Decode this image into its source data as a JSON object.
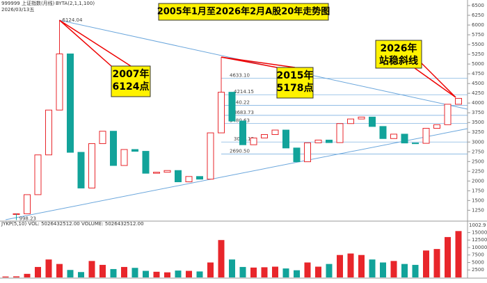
{
  "chart_data": {
    "type": "candlestick",
    "title": "2005年1月至2026年2月A股20年走势图",
    "header": [
      "999999 上证指数(月线)",
      "BYTA(2,1,1,100)",
      "2026/03/13五"
    ],
    "up_color": "#e8262b",
    "down_color": "#12a39a",
    "values": [
      1150,
      1160,
      1650,
      2670,
      3820,
      5260,
      2736,
      1820,
      2959,
      3277,
      2398,
      2808,
      2762,
      2199,
      2225,
      2269,
      1979,
      2116,
      2048,
      3235,
      4277,
      3539,
      2930,
      3104,
      3192,
      3307,
      2847,
      2494,
      2979,
      3050,
      2985,
      3473,
      3591,
      3640,
      3399,
      3089,
      3202,
      2975,
      2967,
      3352,
      3444,
      3969,
      4120
    ],
    "ylim": [
      900,
      6500
    ],
    "yticks": [
      1250,
      1500,
      1750,
      2000,
      2250,
      2500,
      2750,
      3000,
      3250,
      3500,
      3750,
      4000,
      4250,
      4500,
      4750,
      5000,
      5250,
      5500,
      5750,
      6000,
      6250,
      6500
    ],
    "grid": false,
    "peaks": [
      {
        "value": 6124.04,
        "label": "6124.04"
      },
      {
        "value": 5178
      }
    ],
    "low": {
      "value": 998.23,
      "label": "998.23"
    },
    "bottom_label": "1002.9",
    "levels": [
      {
        "value": 4633.1,
        "label": "4633.10"
      },
      {
        "value": 4214.15,
        "label": "4214.15"
      },
      {
        "value": 3940.22,
        "label": "3940.22"
      },
      {
        "value": 3683.73,
        "label": "3683.73"
      },
      {
        "value": 3480.63,
        "label": "3480.63"
      },
      {
        "value": 3001.18,
        "label": "3001.18"
      },
      {
        "value": 2690.5,
        "label": "2690.50"
      }
    ],
    "annotations": [
      [
        "2007年",
        "6124点"
      ],
      [
        "2015年",
        "5178点"
      ],
      [
        "2026年",
        "站稳斜线"
      ]
    ],
    "volume": {
      "header": "JYKP(5,10) VOL: 5026432512.00  VOLUME: 5026432512.00",
      "values": [
        300,
        350,
        1200,
        3500,
        6000,
        4500,
        2500,
        1800,
        5500,
        4200,
        2800,
        3500,
        3200,
        2200,
        1900,
        1700,
        2300,
        2200,
        2000,
        5000,
        12500,
        6000,
        3500,
        3300,
        3400,
        3600,
        3000,
        2400,
        5000,
        3600,
        4500,
        7500,
        8000,
        7500,
        6000,
        5000,
        5500,
        4500,
        4200,
        9000,
        9500,
        13500,
        15500
      ],
      "ylim": [
        0,
        16500
      ],
      "yticks": [
        2500,
        5000,
        7500,
        10000,
        12500,
        15000
      ]
    }
  }
}
